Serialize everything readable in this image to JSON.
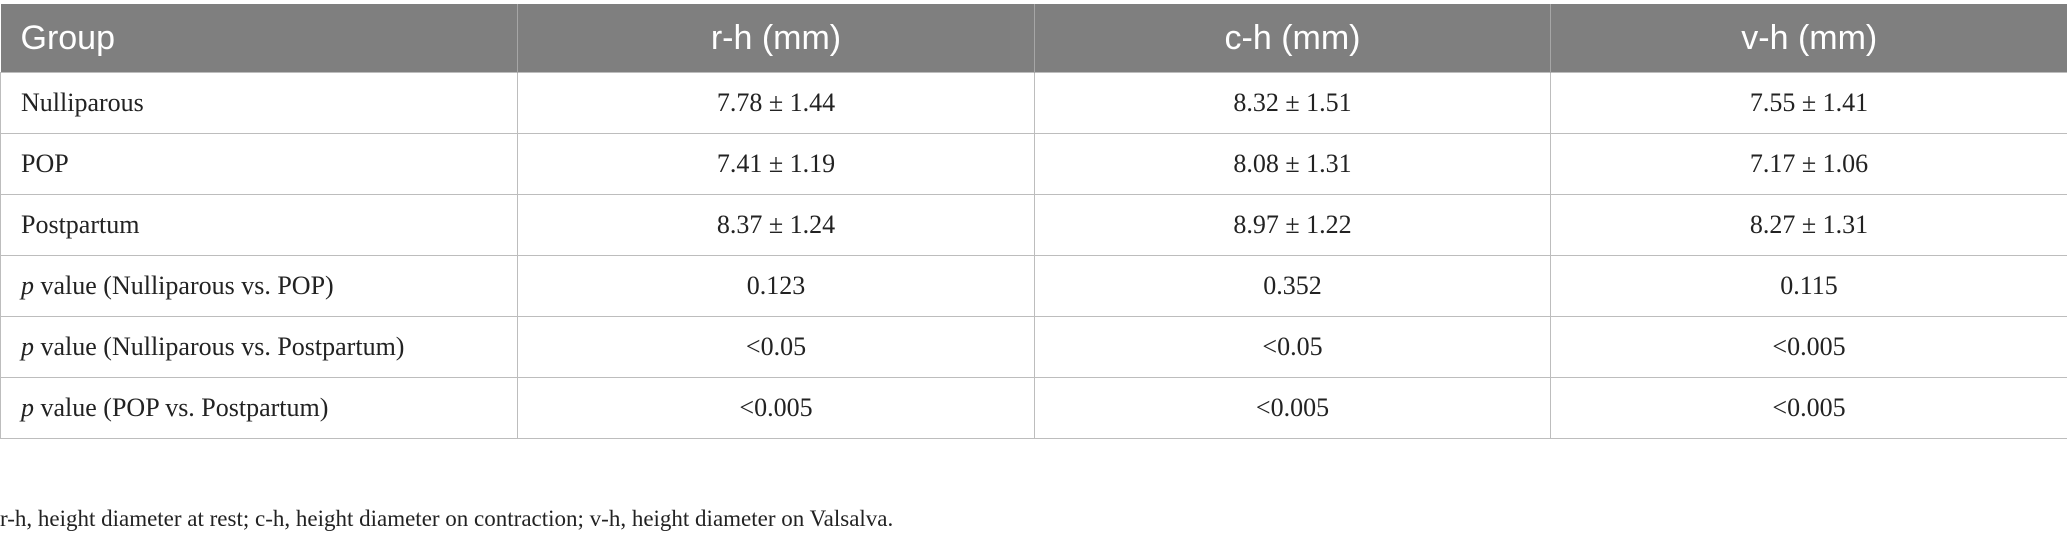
{
  "table": {
    "header": [
      "Group",
      "r-h (mm)",
      "c-h (mm)",
      "v-h (mm)"
    ],
    "rows": [
      {
        "label": {
          "text": "Nulliparous"
        },
        "cells": [
          "7.78 ± 1.44",
          "8.32 ± 1.51",
          "7.55 ± 1.41"
        ]
      },
      {
        "label": {
          "text": "POP"
        },
        "cells": [
          "7.41 ± 1.19",
          "8.08 ± 1.31",
          "7.17 ± 1.06"
        ]
      },
      {
        "label": {
          "text": "Postpartum"
        },
        "cells": [
          "8.37 ± 1.24",
          "8.97 ± 1.22",
          "8.27 ± 1.31"
        ]
      },
      {
        "label": {
          "italic": "p",
          "text": " value (Nulliparous vs. POP)"
        },
        "cells": [
          "0.123",
          "0.352",
          "0.115"
        ]
      },
      {
        "label": {
          "italic": "p",
          "text": " value (Nulliparous vs. Postpartum)"
        },
        "cells": [
          "<0.05",
          "<0.05",
          "<0.005"
        ]
      },
      {
        "label": {
          "italic": "p",
          "text": " value (POP vs. Postpartum)"
        },
        "cells": [
          "<0.005",
          "<0.005",
          "<0.005"
        ]
      }
    ]
  },
  "footnote": "r-h, height diameter at rest; c-h, height diameter on contraction; v-h, height diameter on Valsalva."
}
